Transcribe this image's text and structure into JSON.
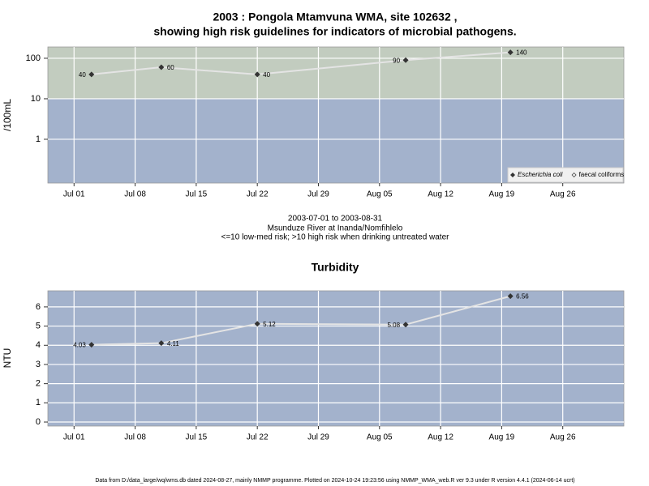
{
  "chart_data": [
    {
      "type": "line",
      "title": [
        "2003 : Pongola Mtamvuna WMA, site 102632 ,",
        "showing high risk guidelines for indicators of microbial pathogens."
      ],
      "subtitle": [
        "2003-07-01 to 2003-08-31",
        "Msunduze River at Inanda/Nomfihlelo",
        "<=10 low-med risk; >10 high risk when drinking untreated water"
      ],
      "y_label": "/100mL",
      "log_scale": true,
      "threshold": 10,
      "background_colors": [
        "#a3b2cc",
        "#c2ccbf"
      ],
      "x": [
        "2003-07-03",
        "2003-07-11",
        "2003-07-22",
        "2003-08-08",
        "2003-08-20"
      ],
      "series": [
        {
          "name": "Escherichia coli",
          "color": "#333333",
          "values": [
            40,
            60,
            40,
            90,
            140
          ]
        },
        {
          "name": "faecal coliforms",
          "color": "#333333",
          "values": [
            null,
            null,
            null,
            null,
            null
          ]
        }
      ],
      "xlim": [
        "2003-06-28",
        "2003-09-02"
      ],
      "xticks": [
        {
          "value": "2003-07-01",
          "label": "Jul 01"
        },
        {
          "value": "2003-07-08",
          "label": "Jul 08"
        },
        {
          "value": "2003-07-15",
          "label": "Jul 15"
        },
        {
          "value": "2003-07-22",
          "label": "Jul 22"
        },
        {
          "value": "2003-07-29",
          "label": "Jul 29"
        },
        {
          "value": "2003-08-05",
          "label": "Aug 05"
        },
        {
          "value": "2003-08-12",
          "label": "Aug 12"
        },
        {
          "value": "2003-08-19",
          "label": "Aug 19"
        },
        {
          "value": "2003-08-26",
          "label": "Aug 26"
        }
      ],
      "ylim": [
        0.083,
        190
      ],
      "yticks": [
        1,
        10,
        100
      ],
      "grid": true,
      "legend": "lower right"
    },
    {
      "type": "line",
      "title": "Turbidity",
      "y_label": "NTU",
      "background_colors": [
        "#a3b2cc"
      ],
      "x": [
        "2003-07-03",
        "2003-07-11",
        "2003-07-22",
        "2003-08-08",
        "2003-08-20"
      ],
      "series": [
        {
          "name": "Turbidity",
          "color": "#333333",
          "values": [
            4.03,
            4.11,
            5.12,
            5.08,
            6.56
          ]
        }
      ],
      "xlim": [
        "2003-06-28",
        "2003-09-02"
      ],
      "xticks": [
        {
          "value": "2003-07-01",
          "label": "Jul 01"
        },
        {
          "value": "2003-07-08",
          "label": "Jul 08"
        },
        {
          "value": "2003-07-15",
          "label": "Jul 15"
        },
        {
          "value": "2003-07-22",
          "label": "Jul 22"
        },
        {
          "value": "2003-07-29",
          "label": "Jul 29"
        },
        {
          "value": "2003-08-05",
          "label": "Aug 05"
        },
        {
          "value": "2003-08-12",
          "label": "Aug 12"
        },
        {
          "value": "2003-08-19",
          "label": "Aug 19"
        },
        {
          "value": "2003-08-26",
          "label": "Aug 26"
        }
      ],
      "ylim": [
        -0.21,
        6.84
      ],
      "yticks": [
        0,
        1,
        2,
        3,
        4,
        5,
        6
      ],
      "grid": true
    }
  ],
  "footer": "Data from D:/data_large/wq/wms.db dated 2024-08-27, mainly NMMP programme. Plotted on 2024-10-24 19:23:56 using NMMP_WMA_web.R ver 9.3 under R version 4.4.1 (2024-06-14 ucrt)"
}
